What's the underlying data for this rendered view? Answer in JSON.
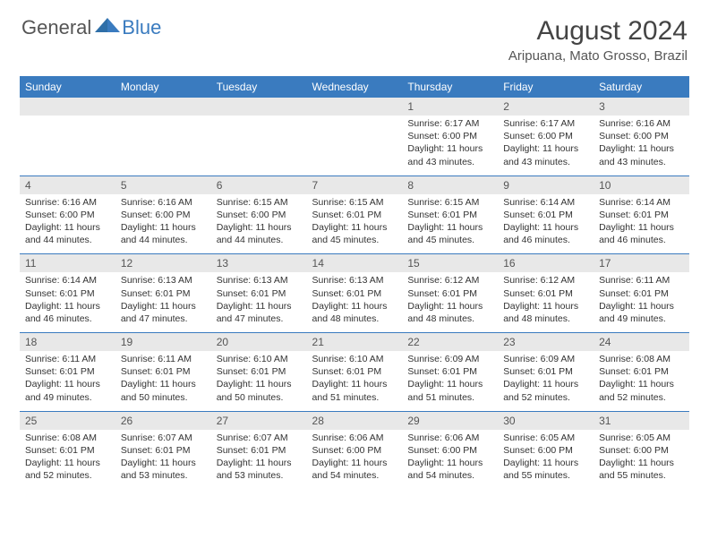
{
  "brand": {
    "part1": "General",
    "part2": "Blue"
  },
  "title": "August 2024",
  "location": "Aripuana, Mato Grosso, Brazil",
  "colors": {
    "header_bg": "#3a7bbf",
    "header_text": "#ffffff",
    "daynum_bg": "#e8e8e8",
    "text": "#333333",
    "rule": "#3a7bbf"
  },
  "daysOfWeek": [
    "Sunday",
    "Monday",
    "Tuesday",
    "Wednesday",
    "Thursday",
    "Friday",
    "Saturday"
  ],
  "weeks": [
    [
      null,
      null,
      null,
      null,
      {
        "n": "1",
        "sunrise": "6:17 AM",
        "sunset": "6:00 PM",
        "daylight": "11 hours and 43 minutes."
      },
      {
        "n": "2",
        "sunrise": "6:17 AM",
        "sunset": "6:00 PM",
        "daylight": "11 hours and 43 minutes."
      },
      {
        "n": "3",
        "sunrise": "6:16 AM",
        "sunset": "6:00 PM",
        "daylight": "11 hours and 43 minutes."
      }
    ],
    [
      {
        "n": "4",
        "sunrise": "6:16 AM",
        "sunset": "6:00 PM",
        "daylight": "11 hours and 44 minutes."
      },
      {
        "n": "5",
        "sunrise": "6:16 AM",
        "sunset": "6:00 PM",
        "daylight": "11 hours and 44 minutes."
      },
      {
        "n": "6",
        "sunrise": "6:15 AM",
        "sunset": "6:00 PM",
        "daylight": "11 hours and 44 minutes."
      },
      {
        "n": "7",
        "sunrise": "6:15 AM",
        "sunset": "6:01 PM",
        "daylight": "11 hours and 45 minutes."
      },
      {
        "n": "8",
        "sunrise": "6:15 AM",
        "sunset": "6:01 PM",
        "daylight": "11 hours and 45 minutes."
      },
      {
        "n": "9",
        "sunrise": "6:14 AM",
        "sunset": "6:01 PM",
        "daylight": "11 hours and 46 minutes."
      },
      {
        "n": "10",
        "sunrise": "6:14 AM",
        "sunset": "6:01 PM",
        "daylight": "11 hours and 46 minutes."
      }
    ],
    [
      {
        "n": "11",
        "sunrise": "6:14 AM",
        "sunset": "6:01 PM",
        "daylight": "11 hours and 46 minutes."
      },
      {
        "n": "12",
        "sunrise": "6:13 AM",
        "sunset": "6:01 PM",
        "daylight": "11 hours and 47 minutes."
      },
      {
        "n": "13",
        "sunrise": "6:13 AM",
        "sunset": "6:01 PM",
        "daylight": "11 hours and 47 minutes."
      },
      {
        "n": "14",
        "sunrise": "6:13 AM",
        "sunset": "6:01 PM",
        "daylight": "11 hours and 48 minutes."
      },
      {
        "n": "15",
        "sunrise": "6:12 AM",
        "sunset": "6:01 PM",
        "daylight": "11 hours and 48 minutes."
      },
      {
        "n": "16",
        "sunrise": "6:12 AM",
        "sunset": "6:01 PM",
        "daylight": "11 hours and 48 minutes."
      },
      {
        "n": "17",
        "sunrise": "6:11 AM",
        "sunset": "6:01 PM",
        "daylight": "11 hours and 49 minutes."
      }
    ],
    [
      {
        "n": "18",
        "sunrise": "6:11 AM",
        "sunset": "6:01 PM",
        "daylight": "11 hours and 49 minutes."
      },
      {
        "n": "19",
        "sunrise": "6:11 AM",
        "sunset": "6:01 PM",
        "daylight": "11 hours and 50 minutes."
      },
      {
        "n": "20",
        "sunrise": "6:10 AM",
        "sunset": "6:01 PM",
        "daylight": "11 hours and 50 minutes."
      },
      {
        "n": "21",
        "sunrise": "6:10 AM",
        "sunset": "6:01 PM",
        "daylight": "11 hours and 51 minutes."
      },
      {
        "n": "22",
        "sunrise": "6:09 AM",
        "sunset": "6:01 PM",
        "daylight": "11 hours and 51 minutes."
      },
      {
        "n": "23",
        "sunrise": "6:09 AM",
        "sunset": "6:01 PM",
        "daylight": "11 hours and 52 minutes."
      },
      {
        "n": "24",
        "sunrise": "6:08 AM",
        "sunset": "6:01 PM",
        "daylight": "11 hours and 52 minutes."
      }
    ],
    [
      {
        "n": "25",
        "sunrise": "6:08 AM",
        "sunset": "6:01 PM",
        "daylight": "11 hours and 52 minutes."
      },
      {
        "n": "26",
        "sunrise": "6:07 AM",
        "sunset": "6:01 PM",
        "daylight": "11 hours and 53 minutes."
      },
      {
        "n": "27",
        "sunrise": "6:07 AM",
        "sunset": "6:01 PM",
        "daylight": "11 hours and 53 minutes."
      },
      {
        "n": "28",
        "sunrise": "6:06 AM",
        "sunset": "6:00 PM",
        "daylight": "11 hours and 54 minutes."
      },
      {
        "n": "29",
        "sunrise": "6:06 AM",
        "sunset": "6:00 PM",
        "daylight": "11 hours and 54 minutes."
      },
      {
        "n": "30",
        "sunrise": "6:05 AM",
        "sunset": "6:00 PM",
        "daylight": "11 hours and 55 minutes."
      },
      {
        "n": "31",
        "sunrise": "6:05 AM",
        "sunset": "6:00 PM",
        "daylight": "11 hours and 55 minutes."
      }
    ]
  ],
  "labels": {
    "sunrise": "Sunrise: ",
    "sunset": "Sunset: ",
    "daylight": "Daylight: "
  }
}
